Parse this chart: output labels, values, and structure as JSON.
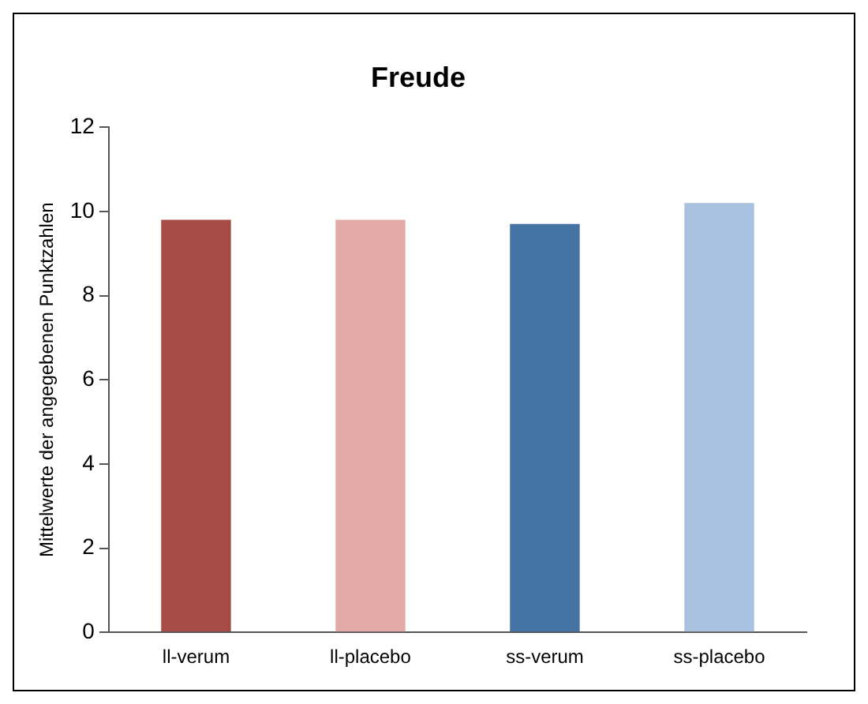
{
  "chart_data": {
    "type": "bar",
    "title": "Freude",
    "ylabel": "Mittelwerte der angegebenen Punktzahlen",
    "categories": [
      "ll-verum",
      "ll-placebo",
      "ss-verum",
      "ss-placebo"
    ],
    "values": [
      9.8,
      9.8,
      9.7,
      10.2
    ],
    "colors": [
      "#a64b45",
      "#e2a9a7",
      "#4573a4",
      "#a8c2e0"
    ],
    "ylim": [
      0,
      12
    ],
    "yticks": [
      0,
      2,
      4,
      6,
      8,
      10,
      12
    ],
    "grid": false,
    "legend": false
  }
}
